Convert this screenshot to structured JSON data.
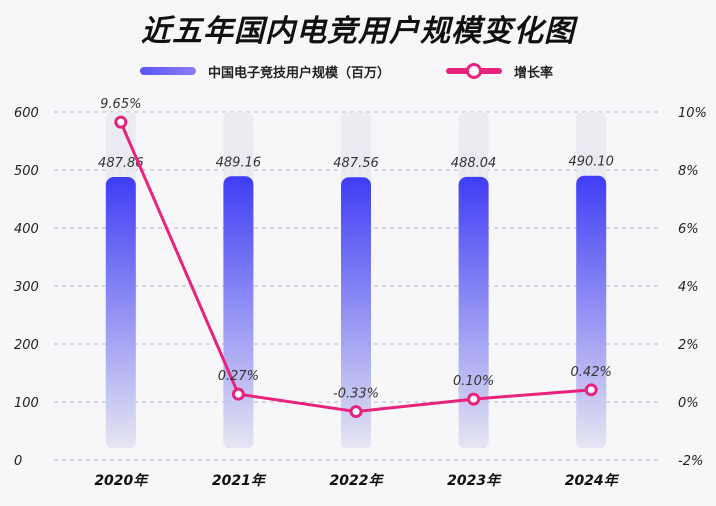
{
  "title": "近五年国内电竞用户规模变化图",
  "legend": {
    "bar_label": "中国电子竞技用户规模（百万）",
    "line_label": "增长率"
  },
  "colors": {
    "bar_top": "#3f3df5",
    "bar_bottom": "#e6e6f2",
    "line": "#e8227d",
    "grid": "#b9b9c6"
  },
  "chart_data": {
    "type": "bar",
    "categories": [
      "2020年",
      "2021年",
      "2022年",
      "2023年",
      "2024年"
    ],
    "series": [
      {
        "name": "中国电子竞技用户规模（百万）",
        "values": [
          487.86,
          489.16,
          487.56,
          488.04,
          490.1
        ],
        "labels": [
          "487.86",
          "489.16",
          "487.56",
          "488.04",
          "490.10"
        ],
        "axis": "left"
      },
      {
        "name": "增长率",
        "type": "line",
        "values": [
          9.65,
          0.27,
          -0.33,
          0.1,
          0.42
        ],
        "labels": [
          "9.65%",
          "0.27%",
          "-0.33%",
          "0.10%",
          "0.42%"
        ],
        "axis": "right"
      }
    ],
    "ylim": [
      0,
      600
    ],
    "yticks": [
      "0",
      "100",
      "200",
      "300",
      "400",
      "500",
      "600"
    ],
    "y2lim": [
      -2,
      10
    ],
    "y2ticks": [
      "-2%",
      "0%",
      "2%",
      "4%",
      "6%",
      "8%",
      "10%"
    ],
    "grid": true,
    "legend_position": "top"
  }
}
